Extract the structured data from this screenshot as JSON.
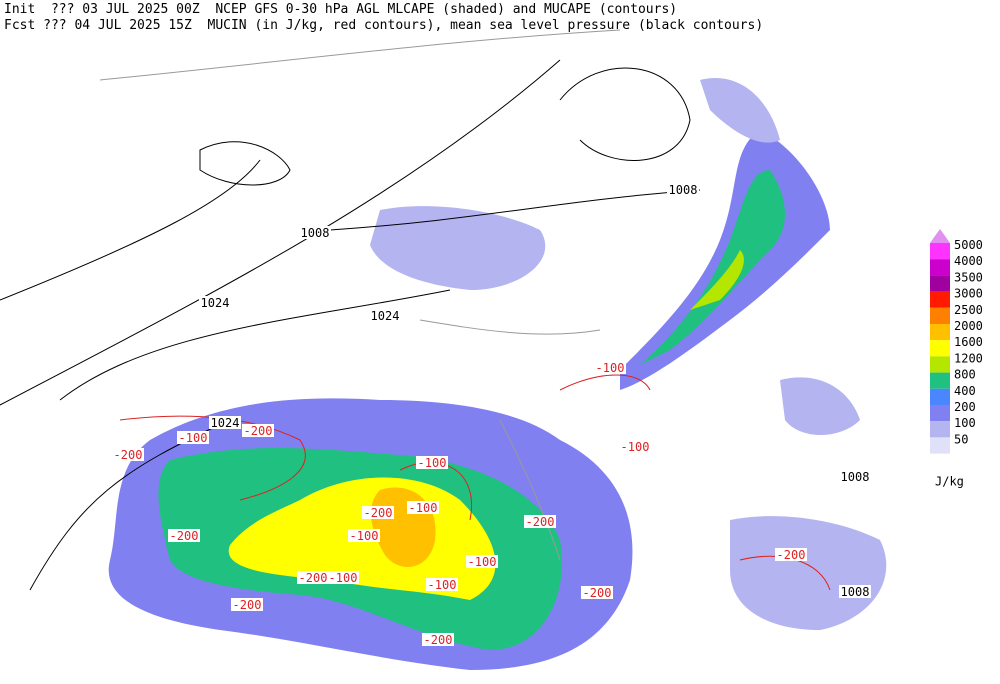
{
  "header": {
    "line1": "Init  ??? 03 JUL 2025 00Z  NCEP GFS 0-30 hPa AGL MLCAPE (shaded) and MUCAPE (contours)",
    "line2": "Fcst ??? 04 JUL 2025 15Z  MUCIN (in J/kg, red contours), mean sea level pressure (black contours)"
  },
  "legend": {
    "levels": [
      {
        "label": "5000",
        "color": "#ff33ff"
      },
      {
        "label": "4000",
        "color": "#cc00cc"
      },
      {
        "label": "3500",
        "color": "#a000a0"
      },
      {
        "label": "3000",
        "color": "#ff1a00"
      },
      {
        "label": "2500",
        "color": "#ff8000"
      },
      {
        "label": "2000",
        "color": "#ffc000"
      },
      {
        "label": "1600",
        "color": "#ffff00"
      },
      {
        "label": "1200",
        "color": "#b4e600"
      },
      {
        "label": "800",
        "color": "#20c080"
      },
      {
        "label": "400",
        "color": "#4a86ff"
      },
      {
        "label": "200",
        "color": "#8080f0"
      },
      {
        "label": "100",
        "color": "#b4b4f0"
      },
      {
        "label": "50",
        "color": "#e0e0f8"
      }
    ],
    "top_color": "#e090f0",
    "unit": "J/kg"
  },
  "contour_labels": [
    "1008",
    "1024",
    "1024",
    "1008",
    "1024",
    "-200",
    "-100",
    "-200",
    "-100",
    "-200",
    "-100",
    "-100",
    "-200",
    "-200",
    "-100",
    "-100",
    "-100",
    "-200",
    "-200",
    "-100",
    "-200",
    "-100",
    "-200",
    "1008",
    "1008",
    "-200"
  ]
}
